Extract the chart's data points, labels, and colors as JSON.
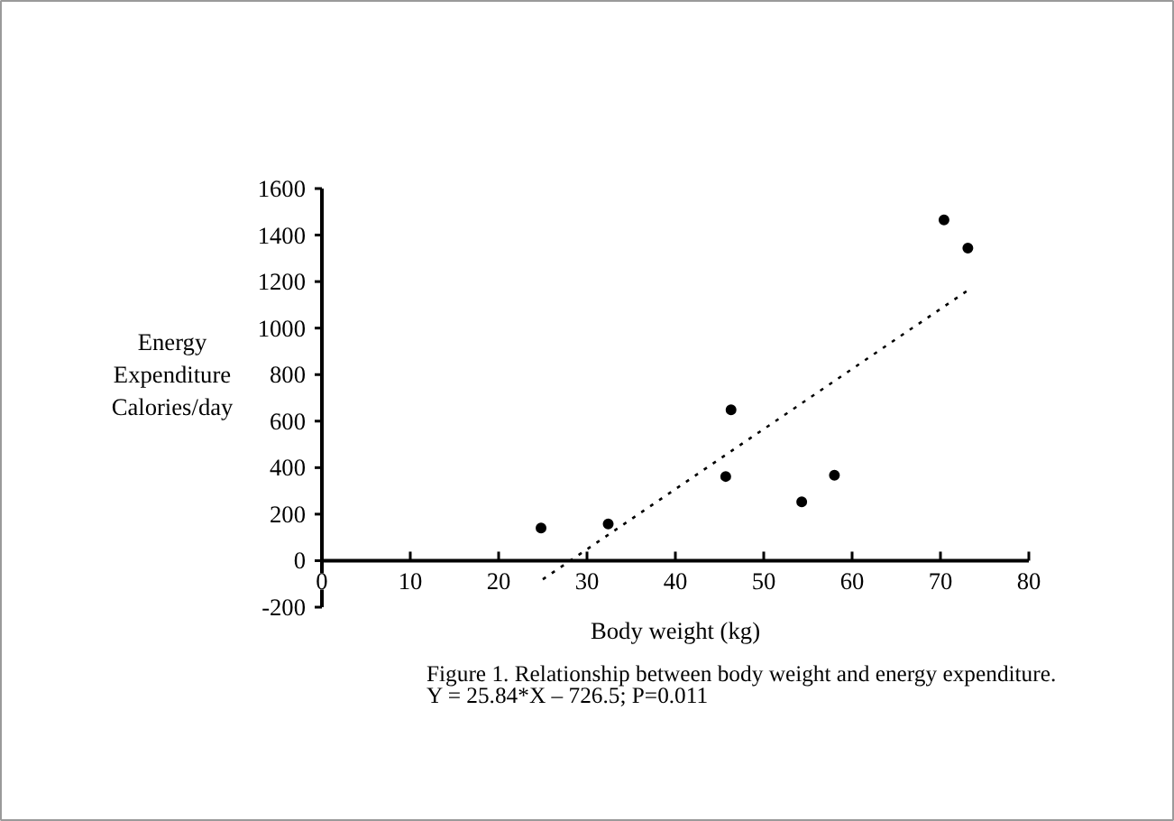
{
  "chart_data": {
    "type": "scatter",
    "xlabel": "Body weight (kg)",
    "ylabel": "Energy\nExpenditure\nCalories/day",
    "annotations": [
      "Figure 1. Relationship between body weight and energy expenditure.",
      "Y = 25.84*X – 726.5; P=0.011"
    ],
    "xlim": [
      0,
      80
    ],
    "ylim": [
      -200,
      1600
    ],
    "xticks": [
      0,
      10,
      20,
      30,
      40,
      50,
      60,
      70,
      80
    ],
    "yticks": [
      -200,
      0,
      200,
      400,
      600,
      800,
      1000,
      1200,
      1400,
      1600
    ],
    "grid": false,
    "marker": "circle",
    "series": [
      {
        "color": "#000000",
        "x": [
          24.8,
          32.4,
          45.7,
          46.3,
          54.3,
          58.0,
          70.4,
          73.1
        ],
        "values": [
          140,
          158,
          362,
          649,
          253,
          367,
          1465,
          1344
        ]
      },
      {
        "type": "line",
        "color": "#000000",
        "line_style": "dotted",
        "marker": "none",
        "x": [
          25,
          73
        ],
        "values": [
          -80,
          1160
        ]
      }
    ]
  }
}
